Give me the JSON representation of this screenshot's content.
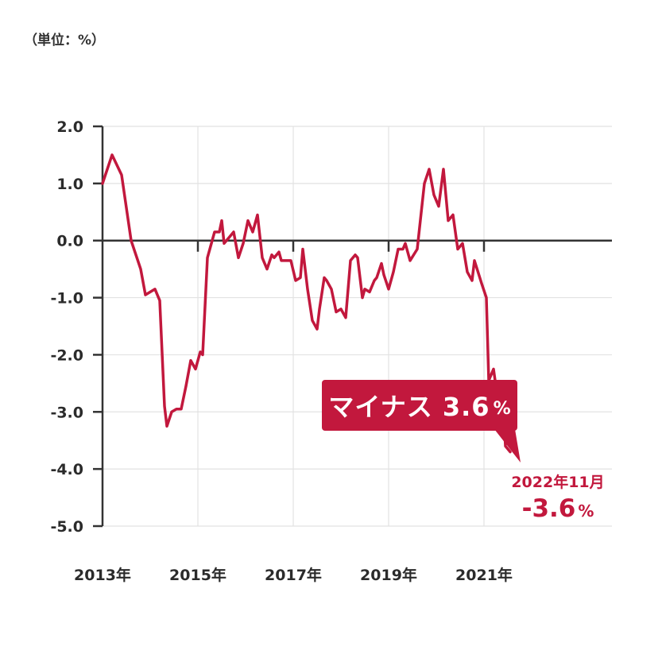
{
  "unit_label": "（単位：%）",
  "callout": {
    "text": "マイナス 3.6",
    "unit": "%"
  },
  "end_annotation": {
    "date": "2022年11月",
    "value": "-3.6",
    "unit": "%"
  },
  "colors": {
    "line": "#c2183d",
    "axis": "#333333",
    "grid": "#e2e2e2",
    "callout_bg": "#c2183d"
  },
  "chart_data": {
    "type": "line",
    "title": "",
    "xlabel": "",
    "ylabel": "",
    "ylim": [
      -5.0,
      2.0
    ],
    "xlim": [
      2013.0,
      2023.5
    ],
    "grid": true,
    "y_ticks": [
      "2.0",
      "1.0",
      "0.0",
      "-1.0",
      "-2.0",
      "-3.0",
      "-4.0",
      "-5.0"
    ],
    "y_tick_values": [
      2.0,
      1.0,
      0.0,
      -1.0,
      -2.0,
      -3.0,
      -4.0,
      -5.0
    ],
    "x_ticks": [
      "2013年",
      "2015年",
      "2017年",
      "2019年",
      "2021年"
    ],
    "x_tick_values": [
      2013,
      2015,
      2017,
      2019,
      2021
    ],
    "series": [
      {
        "x": [
          2013.0,
          2013.2,
          2013.4,
          2013.6,
          2013.8,
          2013.9,
          2014.0,
          2014.1,
          2014.2,
          2014.3,
          2014.35,
          2014.45,
          2014.55,
          2014.65,
          2014.75,
          2014.85,
          2014.95,
          2015.05,
          2015.1,
          2015.2,
          2015.25,
          2015.35,
          2015.45,
          2015.5,
          2015.55,
          2015.65,
          2015.75,
          2015.85,
          2015.95,
          2016.05,
          2016.15,
          2016.25,
          2016.35,
          2016.45,
          2016.55,
          2016.6,
          2016.7,
          2016.75,
          2016.85,
          2016.95,
          2017.05,
          2017.15,
          2017.2,
          2017.3,
          2017.4,
          2017.5,
          2017.55,
          2017.65,
          2017.7,
          2017.8,
          2017.9,
          2018.0,
          2018.1,
          2018.2,
          2018.3,
          2018.35,
          2018.45,
          2018.5,
          2018.6,
          2018.7,
          2018.75,
          2018.85,
          2018.9,
          2019.0,
          2019.1,
          2019.2,
          2019.3,
          2019.35,
          2019.45,
          2019.6,
          2019.75,
          2019.85,
          2019.95,
          2020.05,
          2020.15,
          2020.25,
          2020.35,
          2020.45,
          2020.55,
          2020.65,
          2020.75,
          2020.8,
          2020.95,
          2021.05,
          2021.1,
          2021.2,
          2021.3,
          2021.4,
          2021.45,
          2021.55,
          2021.65,
          2021.7,
          2021.8,
          2021.9,
          2022.0,
          2022.1,
          2022.2,
          2022.3,
          2022.35,
          2022.45,
          2022.55,
          2022.6,
          2022.7
        ],
        "values": [
          1.0,
          1.5,
          1.15,
          0.0,
          -0.5,
          -0.95,
          -0.9,
          -0.85,
          -1.05,
          -2.9,
          -3.25,
          -3.0,
          -2.95,
          -2.95,
          -2.55,
          -2.1,
          -2.25,
          -1.95,
          -2.0,
          -0.3,
          -0.15,
          0.15,
          0.15,
          0.35,
          -0.05,
          0.05,
          0.15,
          -0.3,
          -0.05,
          0.35,
          0.15,
          0.45,
          -0.3,
          -0.5,
          -0.25,
          -0.3,
          -0.2,
          -0.35,
          -0.35,
          -0.35,
          -0.7,
          -0.65,
          -0.15,
          -0.85,
          -1.4,
          -1.55,
          -1.2,
          -0.65,
          -0.7,
          -0.85,
          -1.25,
          -1.2,
          -1.35,
          -0.35,
          -0.25,
          -0.3,
          -1.0,
          -0.85,
          -0.9,
          -0.7,
          -0.65,
          -0.4,
          -0.6,
          -0.85,
          -0.55,
          -0.15,
          -0.15,
          -0.05,
          -0.35,
          -0.15,
          1.0,
          1.25,
          0.8,
          0.6,
          1.25,
          0.35,
          0.45,
          -0.15,
          -0.05,
          -0.55,
          -0.7,
          -0.35,
          -0.75,
          -1.0,
          -2.45,
          -2.25,
          -2.85,
          -2.85,
          -3.6,
          -3.7,
          null,
          null,
          null,
          null,
          null,
          null,
          null,
          null,
          null,
          null,
          null,
          null,
          null
        ]
      }
    ]
  }
}
